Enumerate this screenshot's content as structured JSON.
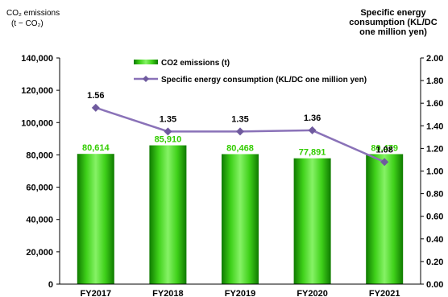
{
  "left_axis_title": {
    "line1": "CO₂ emissions",
    "line2": "(t − CO₂)"
  },
  "right_axis_title": "Specific energy consumption (KL/DC one million yen)",
  "chart_data": {
    "type": "bar+line",
    "categories": [
      "FY2017",
      "FY2018",
      "FY2019",
      "FY2020",
      "FY2021"
    ],
    "series": [
      {
        "name": "CO2 emissions (t)",
        "type": "bar",
        "axis": "left",
        "values": [
          80614,
          85910,
          80468,
          77891,
          80479
        ],
        "labels": [
          "80,614",
          "85,910",
          "80,468",
          "77,891",
          "80,479"
        ],
        "color": "#33cc00"
      },
      {
        "name": "Specific energy consumption (KL/DC one million yen)",
        "type": "line",
        "axis": "right",
        "values": [
          1.56,
          1.35,
          1.35,
          1.36,
          1.08
        ],
        "labels": [
          "1.56",
          "1.35",
          "1.35",
          "1.36",
          "1.08"
        ],
        "color": "#8a72b8"
      }
    ],
    "left_axis": {
      "min": 0,
      "max": 140000,
      "ticks": [
        "0",
        "20,000",
        "40,000",
        "60,000",
        "80,000",
        "100,000",
        "120,000",
        "140,000"
      ]
    },
    "right_axis": {
      "min": 0,
      "max": 2,
      "ticks": [
        "0.00",
        "0.20",
        "0.40",
        "0.60",
        "0.80",
        "1.00",
        "1.20",
        "1.40",
        "1.60",
        "1.80",
        "2.00"
      ]
    },
    "legend_position": "top-center",
    "grid": false
  }
}
